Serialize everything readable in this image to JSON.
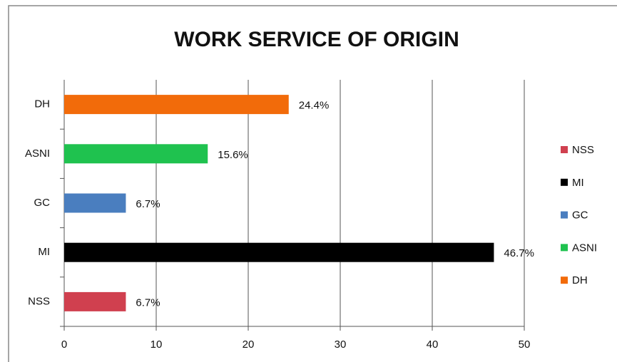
{
  "chart_data": {
    "type": "hbar",
    "title": "WORK SERVICE OF ORIGIN",
    "categories": [
      "NSS",
      "MI",
      "GC",
      "ASNI",
      "DH"
    ],
    "values": [
      6.7,
      46.7,
      6.7,
      15.6,
      24.4
    ],
    "value_labels": [
      "6.7%",
      "46.7%",
      "6.7%",
      "15.6%",
      "24.4%"
    ],
    "colors": [
      "#d0404f",
      "#000000",
      "#4a7ebf",
      "#1fc24f",
      "#f26b0a"
    ],
    "xlim": [
      0,
      50
    ],
    "xticks": [
      0,
      10,
      20,
      30,
      40,
      50
    ],
    "grid": true,
    "legend": "right"
  }
}
